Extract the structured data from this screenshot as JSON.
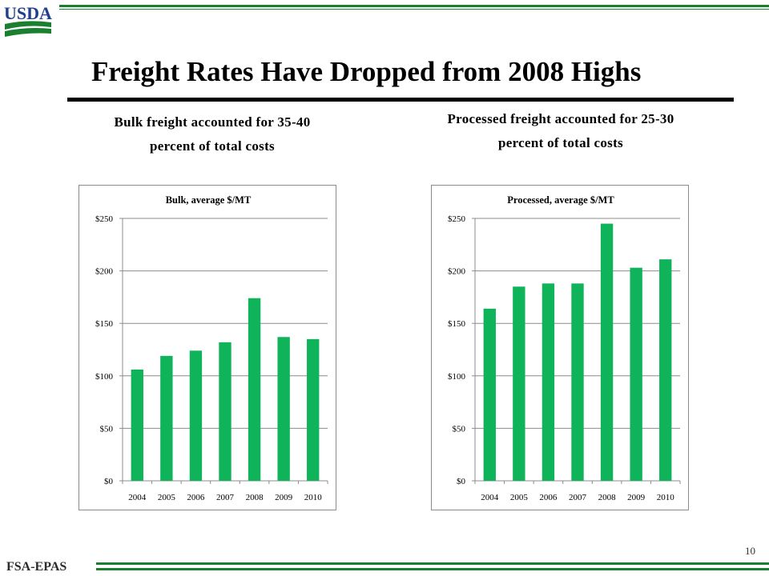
{
  "logo": {
    "text": "USDA",
    "color": "#1a7f2e",
    "text_color": "#1f3f8f"
  },
  "title": "Freight Rates Have Dropped from 2008 Highs",
  "subtitles": {
    "left_line1": "Bulk freight accounted for 35-40",
    "left_line2": "percent of total costs",
    "right_line1": "Processed freight accounted for 25-30",
    "right_line2": "percent of total costs"
  },
  "footer": {
    "label": "FSA-EPAS",
    "page_number": "10"
  },
  "colors": {
    "bar": "#0fb35a",
    "rule": "#1a7f2e",
    "grid": "#8c8c8c"
  },
  "chart_data": [
    {
      "type": "bar",
      "title": "Bulk,  average $/MT",
      "categories": [
        "2004",
        "2005",
        "2006",
        "2007",
        "2008",
        "2009",
        "2010"
      ],
      "values": [
        106,
        119,
        124,
        132,
        174,
        137,
        135
      ],
      "ylim": [
        0,
        250
      ],
      "yticks": [
        0,
        50,
        100,
        150,
        200,
        250
      ],
      "ytick_labels": [
        "$0",
        "$50",
        "$100",
        "$150",
        "$200",
        "$250"
      ],
      "xlabel": "",
      "ylabel": "",
      "grid": true
    },
    {
      "type": "bar",
      "title": "Processed, average $/MT",
      "categories": [
        "2004",
        "2005",
        "2006",
        "2007",
        "2008",
        "2009",
        "2010"
      ],
      "values": [
        164,
        185,
        188,
        188,
        245,
        203,
        211
      ],
      "ylim": [
        0,
        250
      ],
      "yticks": [
        0,
        50,
        100,
        150,
        200,
        250
      ],
      "ytick_labels": [
        "$0",
        "$50",
        "$100",
        "$150",
        "$200",
        "$250"
      ],
      "xlabel": "",
      "ylabel": "",
      "grid": true
    }
  ]
}
